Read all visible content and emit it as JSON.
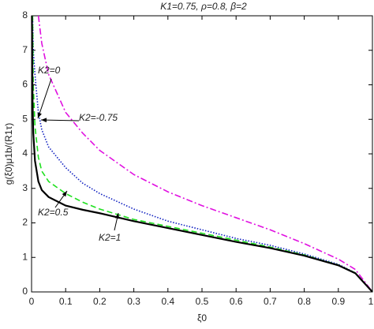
{
  "chart_data": {
    "type": "line",
    "title": "K1=0.75,  ρ=0.8,  β=2",
    "x_label": "ξ0",
    "y_label": "g(ξ0)μ1b/(R1τ)",
    "x": [
      0.001,
      0.003,
      0.005,
      0.01,
      0.02,
      0.03,
      0.05,
      0.1,
      0.15,
      0.2,
      0.3,
      0.4,
      0.5,
      0.6,
      0.7,
      0.8,
      0.9,
      0.95,
      1
    ],
    "series": [
      {
        "name": "K2=-0.75",
        "color": "#e010e0",
        "dash": "dashdot",
        "values": [
          null,
          null,
          null,
          null,
          8,
          7.2,
          6.3,
          5.2,
          4.6,
          4.1,
          3.4,
          2.9,
          2.5,
          2.15,
          1.8,
          1.4,
          0.95,
          0.65,
          0
        ]
      },
      {
        "name": "K2=0",
        "color": "#1020c0",
        "dash": "dotted",
        "values": [
          null,
          8,
          7,
          6.3,
          5.2,
          4.7,
          4.2,
          3.6,
          3.15,
          2.85,
          2.4,
          2.05,
          1.8,
          1.55,
          1.35,
          1.1,
          0.8,
          0.55,
          0
        ]
      },
      {
        "name": "K2=0.5",
        "color": "#20e020",
        "dash": "dashed",
        "values": [
          null,
          8,
          6,
          4.8,
          3.9,
          3.5,
          3.2,
          2.85,
          2.6,
          2.4,
          2.1,
          1.9,
          1.7,
          1.5,
          1.3,
          1.07,
          0.78,
          0.55,
          0
        ]
      },
      {
        "name": "K2=1",
        "color": "#000000",
        "dash": "solid",
        "values": [
          8,
          5.5,
          4.6,
          3.8,
          3.2,
          2.95,
          2.75,
          2.5,
          2.38,
          2.28,
          2.05,
          1.85,
          1.65,
          1.45,
          1.27,
          1.05,
          0.77,
          0.54,
          0
        ]
      }
    ],
    "xlim": [
      0,
      1
    ],
    "ylim": [
      0,
      8
    ],
    "xticks": [
      0,
      0.1,
      0.2,
      0.3,
      0.4,
      0.5,
      0.6,
      0.7,
      0.8,
      0.9,
      1
    ],
    "yticks": [
      0,
      1,
      2,
      3,
      4,
      5,
      6,
      7,
      8
    ]
  }
}
